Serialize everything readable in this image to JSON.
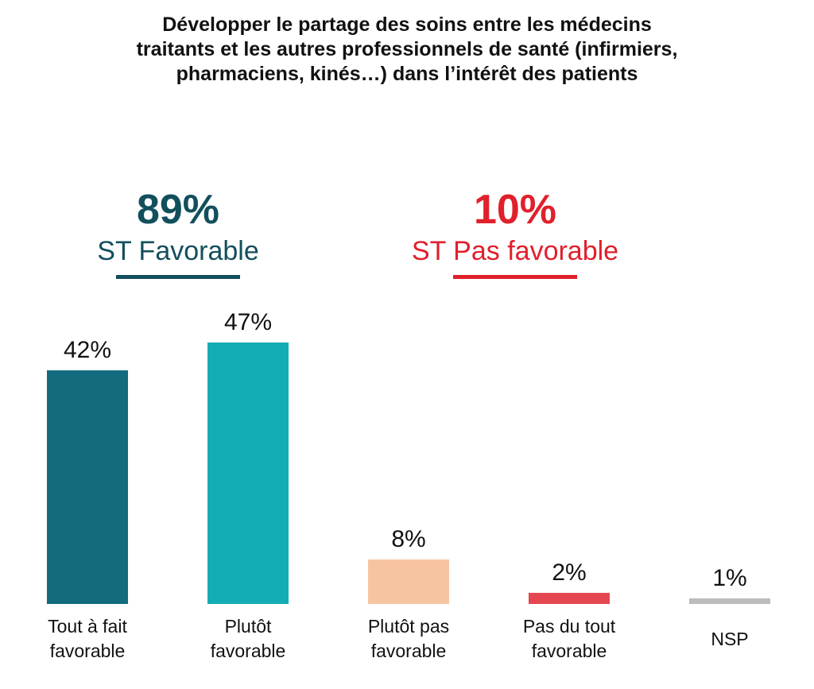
{
  "chart_data": {
    "type": "bar",
    "title": "Développer le partage des soins entre les médecins traitants et les autres professionnels de santé (infirmiers, pharmaciens, kinés…) dans l’intérêt des patients",
    "title_lines": [
      "Développer le partage des soins entre les médecins",
      "traitants et les autres professionnels de santé (infirmiers,",
      "pharmaciens, kinés…) dans l’intérêt des patients"
    ],
    "categories": [
      [
        "Tout à fait",
        "favorable"
      ],
      [
        "Plutôt",
        "favorable"
      ],
      [
        "Plutôt pas",
        "favorable"
      ],
      [
        "Pas du tout",
        "favorable"
      ],
      [
        "NSP"
      ]
    ],
    "values": [
      42,
      47,
      8,
      2,
      1
    ],
    "value_labels": [
      "42%",
      "47%",
      "8%",
      "2%",
      "1%"
    ],
    "colors": [
      "#136b7e",
      "#13adb5",
      "#f7c4a2",
      "#e4474f",
      "#bcbcbc"
    ],
    "ylim": [
      0,
      50
    ],
    "grid": false,
    "xlabel": "",
    "ylabel": ""
  },
  "summary": {
    "favorable": {
      "value": "89%",
      "label": "ST Favorable",
      "color": "#124f5c"
    },
    "unfavorable": {
      "value": "10%",
      "label": "ST Pas favorable",
      "color": "#e0202c"
    }
  }
}
